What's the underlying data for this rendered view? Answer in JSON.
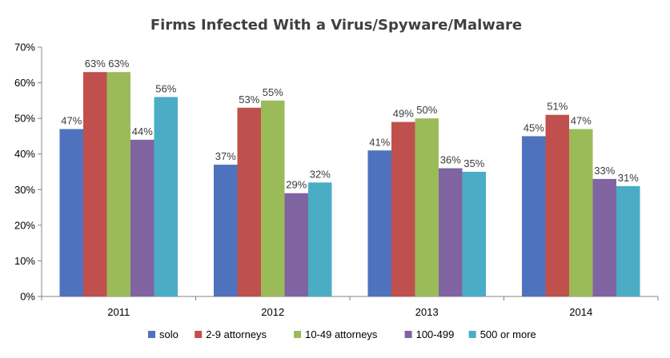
{
  "chart_data": {
    "type": "bar",
    "title": "Firms Infected With a Virus/Spyware/Malware",
    "xlabel": "",
    "ylabel": "",
    "categories": [
      "2011",
      "2012",
      "2013",
      "2014"
    ],
    "ylim": [
      0,
      70
    ],
    "yticks": [
      0,
      10,
      20,
      30,
      40,
      50,
      60,
      70
    ],
    "ytick_labels": [
      "0%",
      "10%",
      "20%",
      "30%",
      "40%",
      "50%",
      "60%",
      "70%"
    ],
    "value_suffix": "%",
    "grid": false,
    "legend_position": "bottom",
    "series": [
      {
        "name": "solo",
        "color": "#4F72BE",
        "values": [
          47,
          37,
          41,
          45
        ]
      },
      {
        "name": "2-9 attorneys",
        "color": "#C0504D",
        "values": [
          63,
          53,
          49,
          51
        ]
      },
      {
        "name": "10-49 attorneys",
        "color": "#9BBB59",
        "values": [
          63,
          55,
          50,
          47
        ]
      },
      {
        "name": "100-499",
        "color": "#8064A2",
        "values": [
          44,
          29,
          36,
          33
        ]
      },
      {
        "name": "500 or more",
        "color": "#4BACC6",
        "values": [
          56,
          32,
          35,
          31
        ]
      }
    ]
  }
}
